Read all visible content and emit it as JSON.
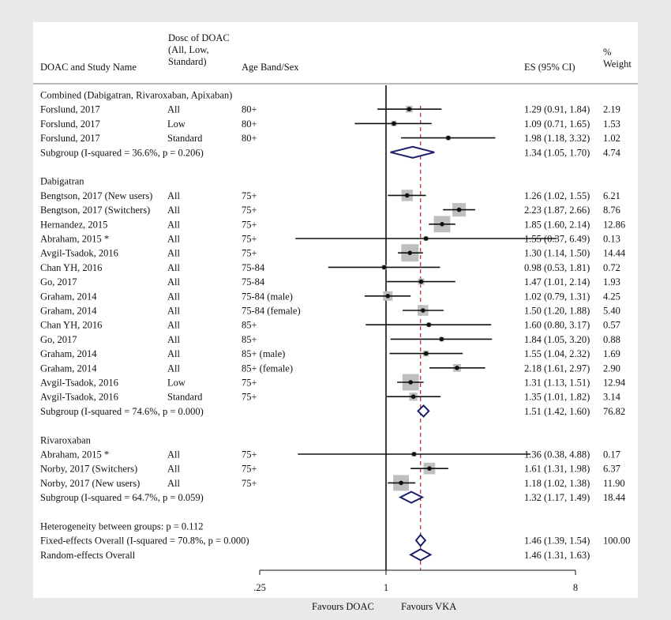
{
  "colors": {
    "panel_bg": "#ffffff",
    "outer_bg": "#e9e9ea",
    "box_grey": "#bfbfbf",
    "diamond": "#1b1f6b",
    "overall_line": "#c0392b",
    "ink": "#111111"
  },
  "headers": {
    "study": "DOAC and Study Name",
    "dose": [
      "Dosc of DOAC",
      "(All, Low,",
      "Standard)"
    ],
    "age": "Age Band/Sex",
    "es": "ES (95% CI)",
    "weight": [
      "%",
      "Weight"
    ]
  },
  "chart_data": {
    "type": "forest",
    "xscale": "log",
    "xticks": [
      {
        "value": 0.25,
        "label": ".25"
      },
      {
        "value": 1,
        "label": "1"
      },
      {
        "value": 8,
        "label": "8"
      }
    ],
    "null_line": 1,
    "overall_dashed_line": 1.46,
    "footer_left": "Favours DOAC",
    "footer_right": "Favours VKA",
    "rows": [
      {
        "kind": "group",
        "label": "Combined (Dabigatran, Rivaroxaban, Apixaban)"
      },
      {
        "kind": "study",
        "label": "Forslund, 2017",
        "dose": "All",
        "age": "80+",
        "es": 1.29,
        "lo": 0.91,
        "hi": 1.84,
        "es_text": "1.29 (0.91, 1.84)",
        "weight": 2.19,
        "weight_text": "2.19"
      },
      {
        "kind": "study",
        "label": "Forslund, 2017",
        "dose": "Low",
        "age": "80+",
        "es": 1.09,
        "lo": 0.71,
        "hi": 1.65,
        "es_text": "1.09 (0.71, 1.65)",
        "weight": 1.53,
        "weight_text": "1.53"
      },
      {
        "kind": "study",
        "label": "Forslund, 2017",
        "dose": "Standard",
        "age": "80+",
        "es": 1.98,
        "lo": 1.18,
        "hi": 3.32,
        "es_text": "1.98 (1.18, 3.32)",
        "weight": 1.02,
        "weight_text": "1.02"
      },
      {
        "kind": "subgroup",
        "label": "Subgroup (I-squared = 36.6%, p = 0.206)",
        "es": 1.34,
        "lo": 1.05,
        "hi": 1.7,
        "es_text": "1.34 (1.05, 1.70)",
        "weight_text": "4.74"
      },
      {
        "kind": "blank"
      },
      {
        "kind": "group",
        "label": "Dabigatran"
      },
      {
        "kind": "study",
        "label": "Bengtson, 2017 (New users)",
        "dose": "All",
        "age": "75+",
        "es": 1.26,
        "lo": 1.02,
        "hi": 1.55,
        "es_text": "1.26 (1.02, 1.55)",
        "weight": 6.21,
        "weight_text": "6.21"
      },
      {
        "kind": "study",
        "label": "Bengtson, 2017 (Switchers)",
        "dose": "All",
        "age": "75+",
        "es": 2.23,
        "lo": 1.87,
        "hi": 2.66,
        "es_text": "2.23 (1.87, 2.66)",
        "weight": 8.76,
        "weight_text": "8.76"
      },
      {
        "kind": "study",
        "label": "Hernandez, 2015",
        "dose": "All",
        "age": "75+",
        "es": 1.85,
        "lo": 1.6,
        "hi": 2.14,
        "es_text": "1.85 (1.60, 2.14)",
        "weight": 12.86,
        "weight_text": "12.86"
      },
      {
        "kind": "study",
        "label": "Abraham, 2015 *",
        "dose": "All",
        "age": "75+",
        "es": 1.55,
        "lo": 0.37,
        "hi": 6.49,
        "es_text": "1.55 (0.37, 6.49)",
        "weight": 0.13,
        "weight_text": "0.13"
      },
      {
        "kind": "study",
        "label": "Avgil-Tsadok, 2016",
        "dose": "All",
        "age": "75+",
        "es": 1.3,
        "lo": 1.14,
        "hi": 1.5,
        "es_text": "1.30 (1.14, 1.50)",
        "weight": 14.44,
        "weight_text": "14.44"
      },
      {
        "kind": "study",
        "label": "Chan YH, 2016",
        "dose": "All",
        "age": "75-84",
        "es": 0.98,
        "lo": 0.53,
        "hi": 1.81,
        "es_text": "0.98 (0.53, 1.81)",
        "weight": 0.72,
        "weight_text": "0.72"
      },
      {
        "kind": "study",
        "label": "Go, 2017",
        "dose": "All",
        "age": "75-84",
        "es": 1.47,
        "lo": 1.01,
        "hi": 2.14,
        "es_text": "1.47 (1.01, 2.14)",
        "weight": 1.93,
        "weight_text": "1.93"
      },
      {
        "kind": "study",
        "label": "Graham, 2014",
        "dose": "All",
        "age": "75-84 (male)",
        "es": 1.02,
        "lo": 0.79,
        "hi": 1.31,
        "es_text": "1.02 (0.79, 1.31)",
        "weight": 4.25,
        "weight_text": "4.25"
      },
      {
        "kind": "study",
        "label": "Graham, 2014",
        "dose": "All",
        "age": "75-84 (female)",
        "es": 1.5,
        "lo": 1.2,
        "hi": 1.88,
        "es_text": "1.50 (1.20, 1.88)",
        "weight": 5.4,
        "weight_text": "5.40"
      },
      {
        "kind": "study",
        "label": "Chan YH, 2016",
        "dose": "All",
        "age": "85+",
        "es": 1.6,
        "lo": 0.8,
        "hi": 3.17,
        "es_text": "1.60 (0.80, 3.17)",
        "weight": 0.57,
        "weight_text": "0.57"
      },
      {
        "kind": "study",
        "label": "Go, 2017",
        "dose": "All",
        "age": "85+",
        "es": 1.84,
        "lo": 1.05,
        "hi": 3.2,
        "es_text": "1.84 (1.05, 3.20)",
        "weight": 0.88,
        "weight_text": "0.88"
      },
      {
        "kind": "study",
        "label": "Graham, 2014",
        "dose": "All",
        "age": "85+ (male)",
        "es": 1.55,
        "lo": 1.04,
        "hi": 2.32,
        "es_text": "1.55 (1.04, 2.32)",
        "weight": 1.69,
        "weight_text": "1.69"
      },
      {
        "kind": "study",
        "label": "Graham, 2014",
        "dose": "All",
        "age": "85+ (female)",
        "es": 2.18,
        "lo": 1.61,
        "hi": 2.97,
        "es_text": "2.18 (1.61, 2.97)",
        "weight": 2.9,
        "weight_text": "2.90"
      },
      {
        "kind": "study",
        "label": "Avgil-Tsadok, 2016",
        "dose": "Low",
        "age": "75+",
        "es": 1.31,
        "lo": 1.13,
        "hi": 1.51,
        "es_text": "1.31 (1.13, 1.51)",
        "weight": 12.94,
        "weight_text": "12.94"
      },
      {
        "kind": "study",
        "label": "Avgil-Tsadok, 2016",
        "dose": "Standard",
        "age": "75+",
        "es": 1.35,
        "lo": 1.01,
        "hi": 1.82,
        "es_text": "1.35 (1.01, 1.82)",
        "weight": 3.14,
        "weight_text": "3.14"
      },
      {
        "kind": "subgroup",
        "label": "Subgroup (I-squared = 74.6%, p = 0.000)",
        "es": 1.51,
        "lo": 1.42,
        "hi": 1.6,
        "es_text": "1.51 (1.42, 1.60)",
        "weight_text": "76.82"
      },
      {
        "kind": "blank"
      },
      {
        "kind": "group",
        "label": "Rivaroxaban"
      },
      {
        "kind": "study",
        "label": "Abraham, 2015 *",
        "dose": "All",
        "age": "75+",
        "es": 1.36,
        "lo": 0.38,
        "hi": 4.88,
        "es_text": "1.36 (0.38, 4.88)",
        "weight": 0.17,
        "weight_text": "0.17"
      },
      {
        "kind": "study",
        "label": "Norby, 2017 (Switchers)",
        "dose": "All",
        "age": "75+",
        "es": 1.61,
        "lo": 1.31,
        "hi": 1.98,
        "es_text": "1.61 (1.31, 1.98)",
        "weight": 6.37,
        "weight_text": "6.37"
      },
      {
        "kind": "study",
        "label": "Norby, 2017 (New users)",
        "dose": "All",
        "age": "75+",
        "es": 1.18,
        "lo": 1.02,
        "hi": 1.38,
        "es_text": "1.18 (1.02, 1.38)",
        "weight": 11.9,
        "weight_text": "11.90"
      },
      {
        "kind": "subgroup",
        "label": "Subgroup (I-squared = 64.7%, p = 0.059)",
        "es": 1.32,
        "lo": 1.17,
        "hi": 1.49,
        "es_text": "1.32 (1.17, 1.49)",
        "weight_text": "18.44"
      },
      {
        "kind": "blank"
      },
      {
        "kind": "text",
        "label": "Heterogeneity between groups: p = 0.112"
      },
      {
        "kind": "overall",
        "label": "Fixed-effects Overall (I-squared = 70.8%, p = 0.000)",
        "es": 1.46,
        "lo": 1.39,
        "hi": 1.54,
        "es_text": "1.46 (1.39, 1.54)",
        "weight_text": "100.00"
      },
      {
        "kind": "overall",
        "label": "Random-effects Overall",
        "es": 1.46,
        "lo": 1.31,
        "hi": 1.63,
        "es_text": "1.46 (1.31, 1.63)",
        "weight_text": ""
      }
    ]
  }
}
